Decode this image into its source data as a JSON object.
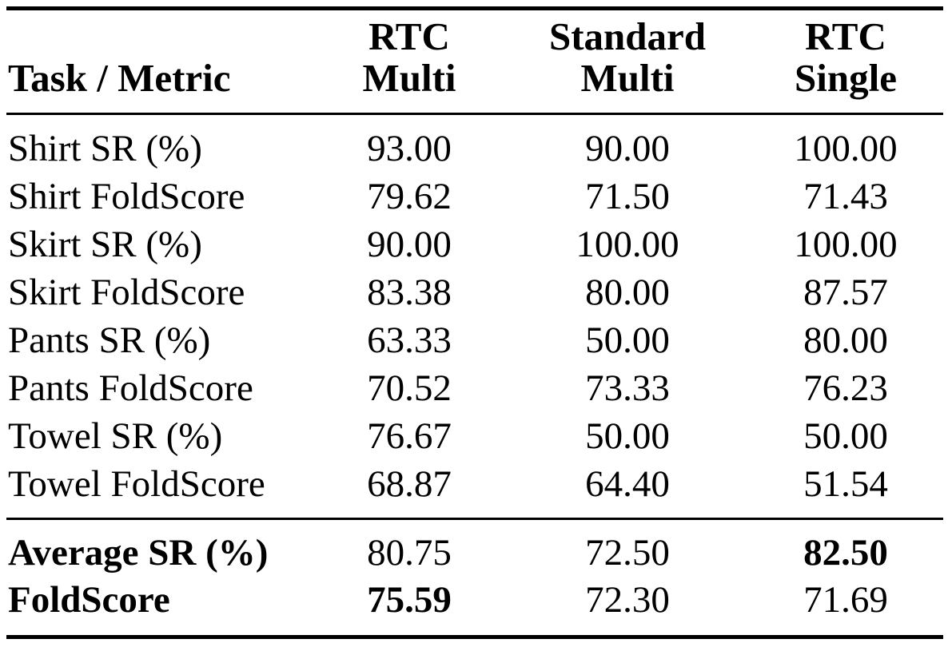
{
  "table": {
    "headers": {
      "task": "Task / Metric",
      "columns": [
        {
          "line1": "RTC",
          "line2": "Multi"
        },
        {
          "line1": "Standard",
          "line2": "Multi"
        },
        {
          "line1": "RTC",
          "line2": "Single"
        }
      ]
    },
    "rows": [
      {
        "label": "Shirt SR (%)",
        "values": [
          "93.00",
          "90.00",
          "100.00"
        ]
      },
      {
        "label": "Shirt FoldScore",
        "values": [
          "79.62",
          "71.50",
          "71.43"
        ]
      },
      {
        "label": "Skirt SR (%)",
        "values": [
          "90.00",
          "100.00",
          "100.00"
        ]
      },
      {
        "label": "Skirt FoldScore",
        "values": [
          "83.38",
          "80.00",
          "87.57"
        ]
      },
      {
        "label": "Pants SR (%)",
        "values": [
          "63.33",
          "50.00",
          "80.00"
        ]
      },
      {
        "label": "Pants FoldScore",
        "values": [
          "70.52",
          "73.33",
          "76.23"
        ]
      },
      {
        "label": "Towel SR (%)",
        "values": [
          "76.67",
          "50.00",
          "50.00"
        ]
      },
      {
        "label": "Towel FoldScore",
        "values": [
          "68.87",
          "64.40",
          "51.54"
        ]
      }
    ],
    "summary_rows": [
      {
        "label": "Average SR (%)",
        "values": [
          "80.75",
          "72.50",
          "82.50"
        ],
        "bold_label": true,
        "bold_index": 2
      },
      {
        "label": "FoldScore",
        "values": [
          "75.59",
          "72.30",
          "71.69"
        ],
        "bold_label": true,
        "bold_index": 0
      }
    ]
  }
}
